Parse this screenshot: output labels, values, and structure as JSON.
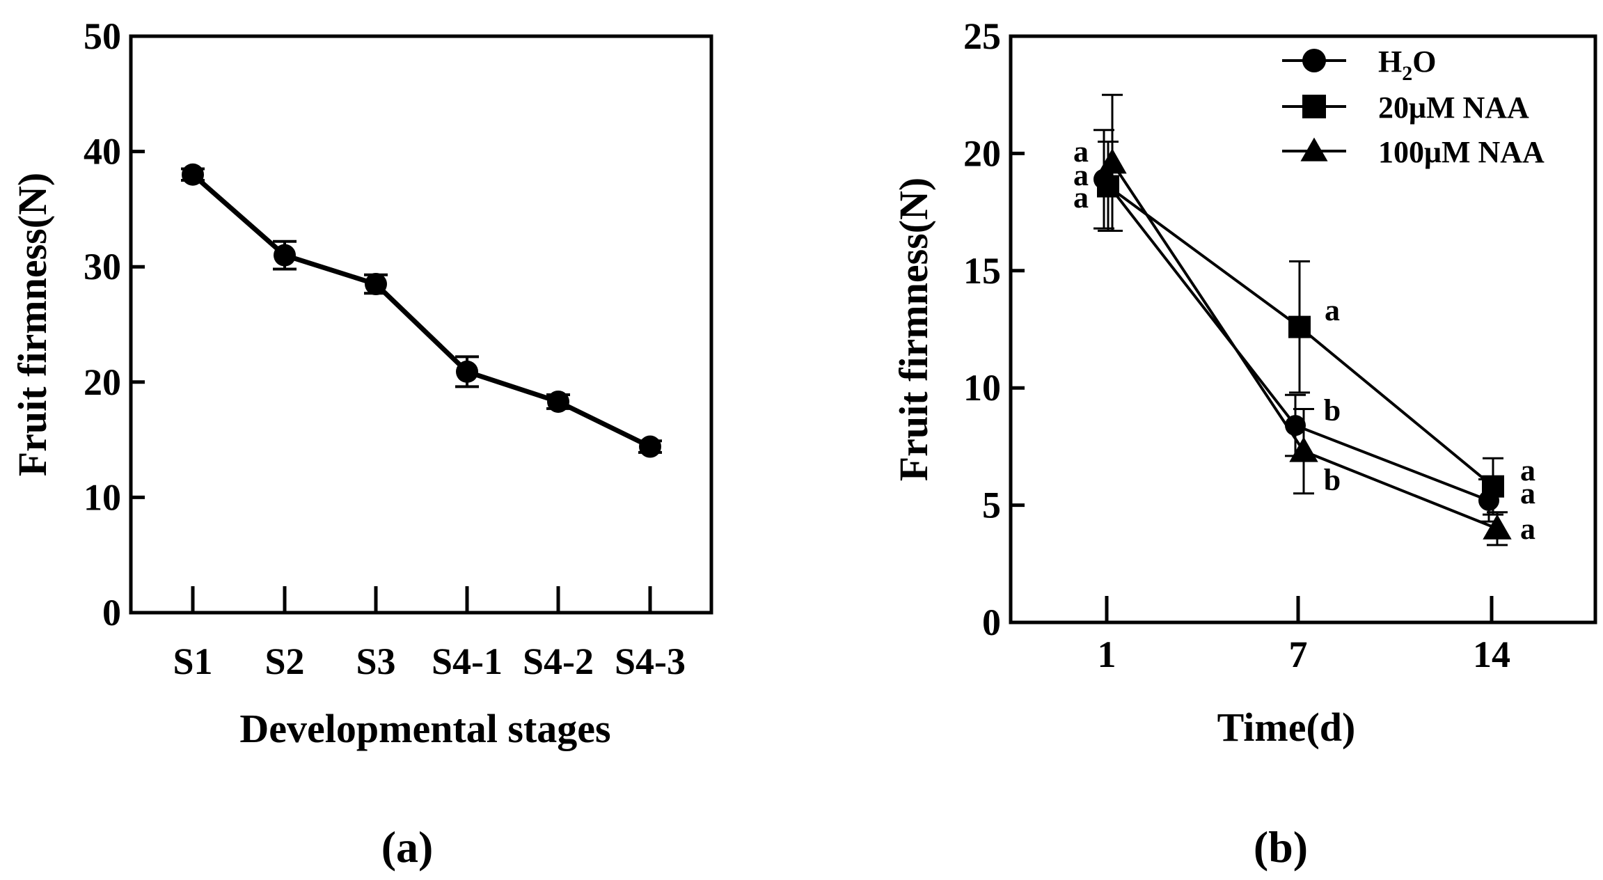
{
  "figure": {
    "panel_labels": [
      "(a)",
      "(b)"
    ]
  },
  "chart_data": [
    {
      "type": "line",
      "panel": "(a)",
      "xlabel": "Developmental stages",
      "ylabel": "Fruit firmness(N)",
      "categories": [
        "S1",
        "S2",
        "S3",
        "S4-1",
        "S4-2",
        "S4-3"
      ],
      "ylim": [
        0,
        50
      ],
      "yticks": [
        0,
        10,
        20,
        30,
        40,
        50
      ],
      "series": [
        {
          "name": "Fruit firmness",
          "marker": "circle",
          "values": [
            38.0,
            31.0,
            28.5,
            20.9,
            18.3,
            14.4
          ],
          "errors": [
            0.5,
            1.2,
            0.8,
            1.3,
            0.6,
            0.5
          ]
        }
      ]
    },
    {
      "type": "line",
      "panel": "(b)",
      "xlabel": "Time(d)",
      "ylabel": "Fruit firmness(N)",
      "categories": [
        "1",
        "7",
        "14"
      ],
      "ylim": [
        0,
        25
      ],
      "yticks": [
        0,
        5,
        10,
        15,
        20,
        25
      ],
      "legend": {
        "position": "top-right"
      },
      "series": [
        {
          "name": "H2O",
          "legend_main": "H",
          "legend_sub": "2",
          "legend_tail": "O",
          "marker": "circle",
          "values": [
            18.9,
            8.4,
            5.2
          ],
          "errors": [
            2.1,
            1.3,
            0.9
          ],
          "letters": [
            "a",
            "b",
            "a"
          ]
        },
        {
          "name": "20μM NAA",
          "marker": "square",
          "values": [
            18.6,
            12.6,
            5.8
          ],
          "errors": [
            1.9,
            2.8,
            1.2
          ],
          "letters": [
            "a",
            "a",
            "a"
          ]
        },
        {
          "name": "100μM NAA",
          "marker": "triangle",
          "values": [
            19.6,
            7.3,
            4.0
          ],
          "errors": [
            2.9,
            1.8,
            0.7
          ],
          "letters": [
            "a",
            "b",
            "a"
          ]
        }
      ]
    }
  ]
}
